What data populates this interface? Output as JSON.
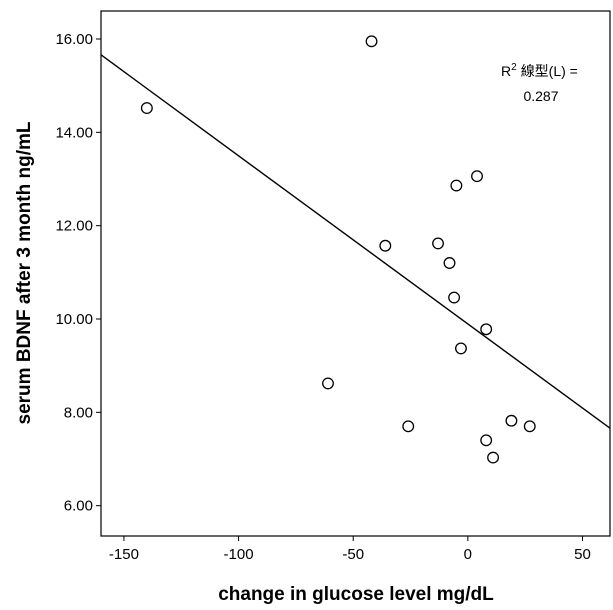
{
  "chart_data": {
    "type": "scatter",
    "xlabel": "change in glucose level mg/dL",
    "ylabel": "serum BDNF after 3 month ng/mL",
    "xlim": [
      -160,
      62
    ],
    "ylim": [
      5.35,
      16.6
    ],
    "x_ticks": [
      -150,
      -100,
      -50,
      0,
      50
    ],
    "x_tick_labels": [
      "-150",
      "-100",
      "-50",
      "0",
      "50"
    ],
    "y_ticks": [
      6,
      8,
      10,
      12,
      14,
      16
    ],
    "y_tick_labels": [
      "6.00",
      "8.00",
      "10.00",
      "12.00",
      "14.00",
      "16.00"
    ],
    "grid": false,
    "points": [
      {
        "x": -140,
        "y": 14.52
      },
      {
        "x": -42,
        "y": 15.95
      },
      {
        "x": -61,
        "y": 8.62
      },
      {
        "x": -36,
        "y": 11.57
      },
      {
        "x": -26,
        "y": 7.7
      },
      {
        "x": -13,
        "y": 11.62
      },
      {
        "x": -8,
        "y": 11.2
      },
      {
        "x": -6,
        "y": 10.46
      },
      {
        "x": -5,
        "y": 12.86
      },
      {
        "x": -3,
        "y": 9.37
      },
      {
        "x": 4,
        "y": 13.06
      },
      {
        "x": 8,
        "y": 9.78
      },
      {
        "x": 8,
        "y": 7.4
      },
      {
        "x": 11,
        "y": 7.03
      },
      {
        "x": 19,
        "y": 7.82
      },
      {
        "x": 27,
        "y": 7.7
      }
    ],
    "fit_line": {
      "x": [
        -160,
        62
      ],
      "y": [
        15.66,
        7.66
      ]
    },
    "annotation": {
      "r2_label": "R",
      "r2_superscript": "2",
      "fit_label": "線型(L) =",
      "r2_value": "0.287"
    }
  }
}
